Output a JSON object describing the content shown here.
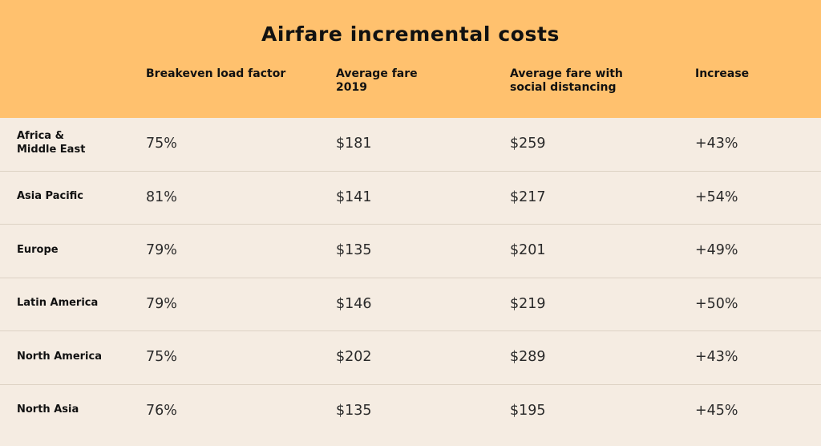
{
  "chart_data": {
    "type": "table",
    "title": "Airfare incremental costs",
    "columns": [
      "",
      "Breakeven load factor",
      "Average fare\n2019",
      "Average fare with\nsocial distancing",
      "Increase"
    ],
    "rows": [
      {
        "region": "Africa &\nMiddle East",
        "breakeven": "75%",
        "fare_2019": "$181",
        "fare_distancing": "$259",
        "increase": "+43%"
      },
      {
        "region": "Asia Pacific",
        "breakeven": "81%",
        "fare_2019": "$141",
        "fare_distancing": "$217",
        "increase": "+54%"
      },
      {
        "region": "Europe",
        "breakeven": "79%",
        "fare_2019": "$135",
        "fare_distancing": "$201",
        "increase": "+49%"
      },
      {
        "region": "Latin America",
        "breakeven": "79%",
        "fare_2019": "$146",
        "fare_distancing": "$219",
        "increase": "+50%"
      },
      {
        "region": "North America",
        "breakeven": "75%",
        "fare_2019": "$202",
        "fare_distancing": "$289",
        "increase": "+43%"
      },
      {
        "region": "North Asia",
        "breakeven": "76%",
        "fare_2019": "$135",
        "fare_distancing": "$195",
        "increase": "+45%"
      }
    ]
  },
  "colors": {
    "header_background": "#ffc16e",
    "body_background": "#f5ece2",
    "divider": "#ddd2c4",
    "text": "#1e1e1e"
  }
}
